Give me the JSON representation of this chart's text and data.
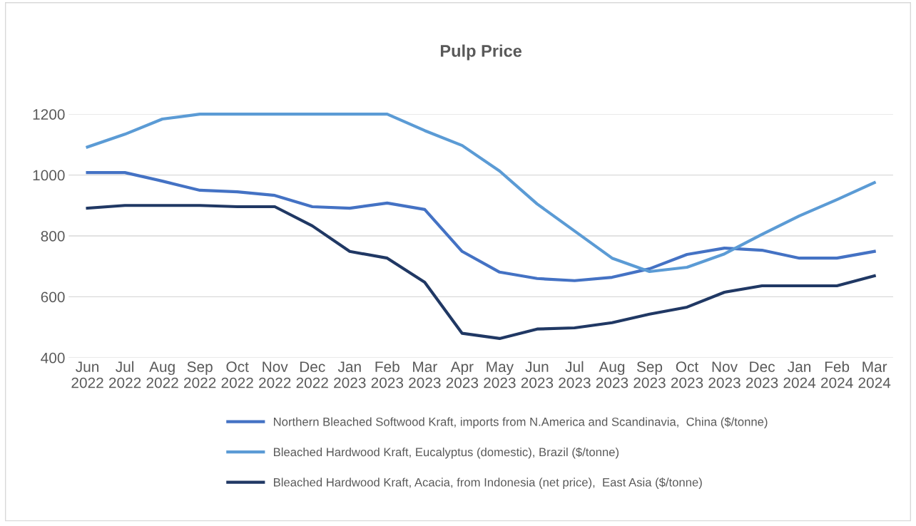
{
  "chart_data": {
    "type": "line",
    "title": "Pulp Price",
    "categories": [
      "Jun\n2022",
      "Jul\n2022",
      "Aug\n2022",
      "Sep\n2022",
      "Oct\n2022",
      "Nov\n2022",
      "Dec\n2022",
      "Jan\n2023",
      "Feb\n2023",
      "Mar\n2023",
      "Apr\n2023",
      "May\n2023",
      "Jun\n2023",
      "Jul\n2023",
      "Aug\n2023",
      "Sep\n2023",
      "Oct\n2023",
      "Nov\n2023",
      "Dec\n2023",
      "Jan\n2024",
      "Feb\n2024",
      "Mar\n2024"
    ],
    "series": [
      {
        "name": "Northern Bleached Softwood Kraft, imports from N.America and Scandinavia,  China ($/tonne)",
        "color": "#4472c4",
        "values": [
          1008,
          1008,
          980,
          950,
          945,
          933,
          896,
          891,
          908,
          887,
          749,
          681,
          660,
          653,
          664,
          692,
          739,
          760,
          753,
          727,
          727,
          749
        ]
      },
      {
        "name": "Bleached Hardwood Kraft, Eucalyptus (domestic), Brazil ($/tonne)",
        "color": "#5b9bd5",
        "values": [
          1092,
          1134,
          1184,
          1200,
          1200,
          1200,
          1200,
          1200,
          1200,
          1146,
          1097,
          1013,
          905,
          816,
          727,
          683,
          697,
          741,
          805,
          866,
          919,
          975
        ]
      },
      {
        "name": "Bleached Hardwood Kraft, Acacia, from Indonesia (net price),  East Asia ($/tonne)",
        "color": "#203864",
        "values": [
          891,
          900,
          900,
          900,
          896,
          896,
          833,
          749,
          727,
          648,
          480,
          463,
          494,
          498,
          515,
          543,
          566,
          615,
          636,
          636,
          636,
          669
        ]
      }
    ],
    "ylim": [
      400,
      1200
    ],
    "yticks": [
      400,
      600,
      800,
      1000,
      1200
    ],
    "grid": "y",
    "legend": "bottom",
    "marker": "none",
    "line_style": "solid"
  }
}
